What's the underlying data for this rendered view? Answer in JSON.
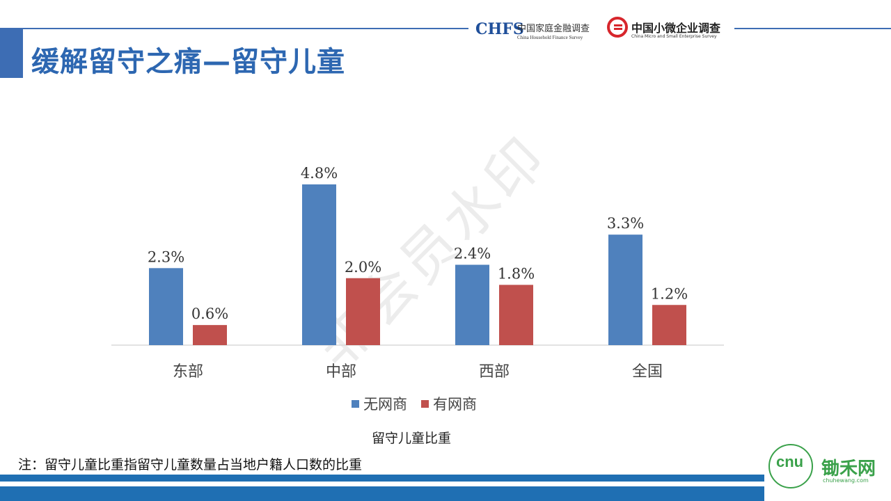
{
  "header": {
    "title": "缓解留守之痛—留守儿童",
    "logo1_mark": "CHFS",
    "logo1_cn": "中国家庭金融调查",
    "logo1_en": "China Household Finance Survey",
    "logo2_cn": "中国小微企业调查",
    "logo2_en": "China Micro and Small Enterprise Survey"
  },
  "watermark": "非会员水印",
  "chart_data": {
    "type": "bar",
    "title": "留守儿童比重",
    "categories": [
      "东部",
      "中部",
      "西部",
      "全国"
    ],
    "series": [
      {
        "name": "无网商",
        "values": [
          2.3,
          4.8,
          2.4,
          3.3
        ],
        "labels": [
          "2.3%",
          "4.8%",
          "2.4%",
          "3.3%"
        ],
        "color": "#4f81bd"
      },
      {
        "name": "有网商",
        "values": [
          0.6,
          2.0,
          1.8,
          1.2
        ],
        "labels": [
          "0.6%",
          "2.0%",
          "1.8%",
          "1.2%"
        ],
        "color": "#c0504d"
      }
    ],
    "ylim": [
      0,
      5
    ],
    "grid": false,
    "legend_position": "bottom"
  },
  "note": "注：留守儿童比重指留守儿童数量占当地户籍人口数的比重",
  "footer": {
    "logo_mark": "cnu",
    "logo_text": "锄禾网",
    "logo_url": "chuhewang.com"
  }
}
